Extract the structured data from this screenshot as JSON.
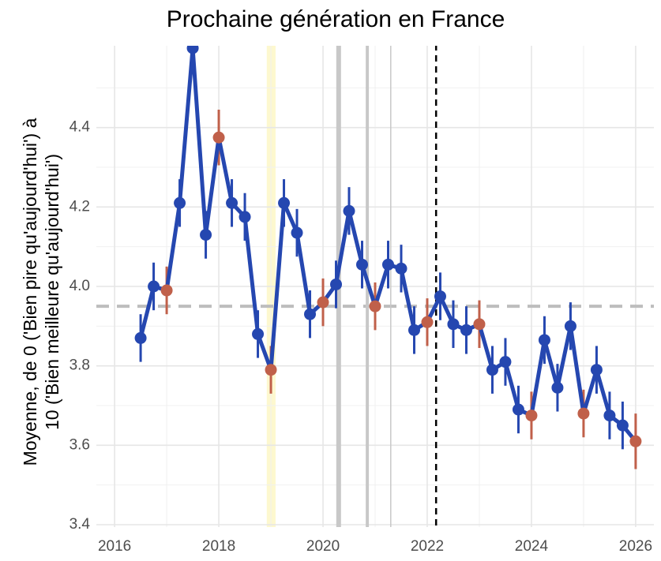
{
  "chart_data": {
    "type": "line",
    "title": "Prochaine génération en France",
    "y_label": [
      "Moyenne, de 0 ('Bien pire qu'aujourd'hui') à",
      "10 ('Bien meilleure qu'aujourd'hui')"
    ],
    "x": [
      2016.5,
      2016.75,
      2017.0,
      2017.25,
      2017.5,
      2017.75,
      2018.0,
      2018.25,
      2018.5,
      2018.75,
      2019.0,
      2019.25,
      2019.5,
      2019.75,
      2020.0,
      2020.25,
      2020.5,
      2020.75,
      2021.0,
      2021.25,
      2021.5,
      2021.75,
      2022.0,
      2022.25,
      2022.5,
      2022.75,
      2023.0,
      2023.25,
      2023.5,
      2023.75,
      2024.0,
      2024.25,
      2024.5,
      2024.75,
      2025.0,
      2025.25,
      2025.5,
      2025.75,
      2026.0
    ],
    "series": [
      {
        "color": "#2547b0",
        "values": [
          3.87,
          4.0,
          3.99,
          4.21,
          4.6,
          4.13,
          4.375,
          4.21,
          4.175,
          3.88,
          3.79,
          4.21,
          4.135,
          3.93,
          3.96,
          4.005,
          4.19,
          4.055,
          3.95,
          4.055,
          4.045,
          3.89,
          3.91,
          3.975,
          3.905,
          3.89,
          3.905,
          3.79,
          3.81,
          3.69,
          3.675,
          3.865,
          3.745,
          3.9,
          3.68,
          3.79,
          3.675,
          3.65,
          3.61
        ],
        "errors": [
          0.06,
          0.06,
          0.06,
          0.06,
          0.06,
          0.06,
          0.07,
          0.06,
          0.06,
          0.06,
          0.06,
          0.06,
          0.06,
          0.06,
          0.06,
          0.06,
          0.06,
          0.06,
          0.06,
          0.06,
          0.06,
          0.06,
          0.06,
          0.06,
          0.06,
          0.06,
          0.06,
          0.06,
          0.06,
          0.06,
          0.06,
          0.06,
          0.06,
          0.06,
          0.06,
          0.06,
          0.06,
          0.06,
          0.07
        ],
        "point_colors": [
          "#2547b0",
          "#2547b0",
          "#c0604a",
          "#2547b0",
          "#2547b0",
          "#2547b0",
          "#c0604a",
          "#2547b0",
          "#2547b0",
          "#2547b0",
          "#c0604a",
          "#2547b0",
          "#2547b0",
          "#2547b0",
          "#c0604a",
          "#2547b0",
          "#2547b0",
          "#2547b0",
          "#c0604a",
          "#2547b0",
          "#2547b0",
          "#2547b0",
          "#c0604a",
          "#2547b0",
          "#2547b0",
          "#2547b0",
          "#c0604a",
          "#2547b0",
          "#2547b0",
          "#2547b0",
          "#c0604a",
          "#2547b0",
          "#2547b0",
          "#2547b0",
          "#c0604a",
          "#2547b0",
          "#2547b0",
          "#2547b0",
          "#c0604a"
        ]
      }
    ],
    "xlim": [
      2015.65,
      2026.35
    ],
    "ylim": [
      3.4,
      4.6
    ],
    "xticks": [
      2016,
      2018,
      2020,
      2022,
      2024,
      2026
    ],
    "yticks": [
      3.4,
      3.6,
      3.8,
      {
        "value": 4.0,
        "label": "4.0"
      },
      4.2,
      4.4
    ],
    "xminorticks": [
      2017,
      2019,
      2021,
      2023,
      2025
    ],
    "yminorticks": [
      3.5,
      3.7,
      3.9,
      4.1,
      4.3,
      4.5
    ],
    "grid": true,
    "hline": {
      "value": 3.95,
      "color": "#bdbdbd"
    },
    "vband": {
      "range": [
        2018.92,
        2019.09
      ],
      "color": "#fdf8cf"
    },
    "vlines": [
      {
        "value": 2020.3,
        "color": "#c8c8c8",
        "width": 6
      },
      {
        "value": 2020.85,
        "color": "#c8c8c8",
        "width": 4
      },
      {
        "value": 2021.3,
        "color": "#c8c8c8",
        "width": 1.5
      },
      {
        "value": 2022.17,
        "color": "#000000",
        "width": 2.5,
        "dash": true
      }
    ]
  }
}
